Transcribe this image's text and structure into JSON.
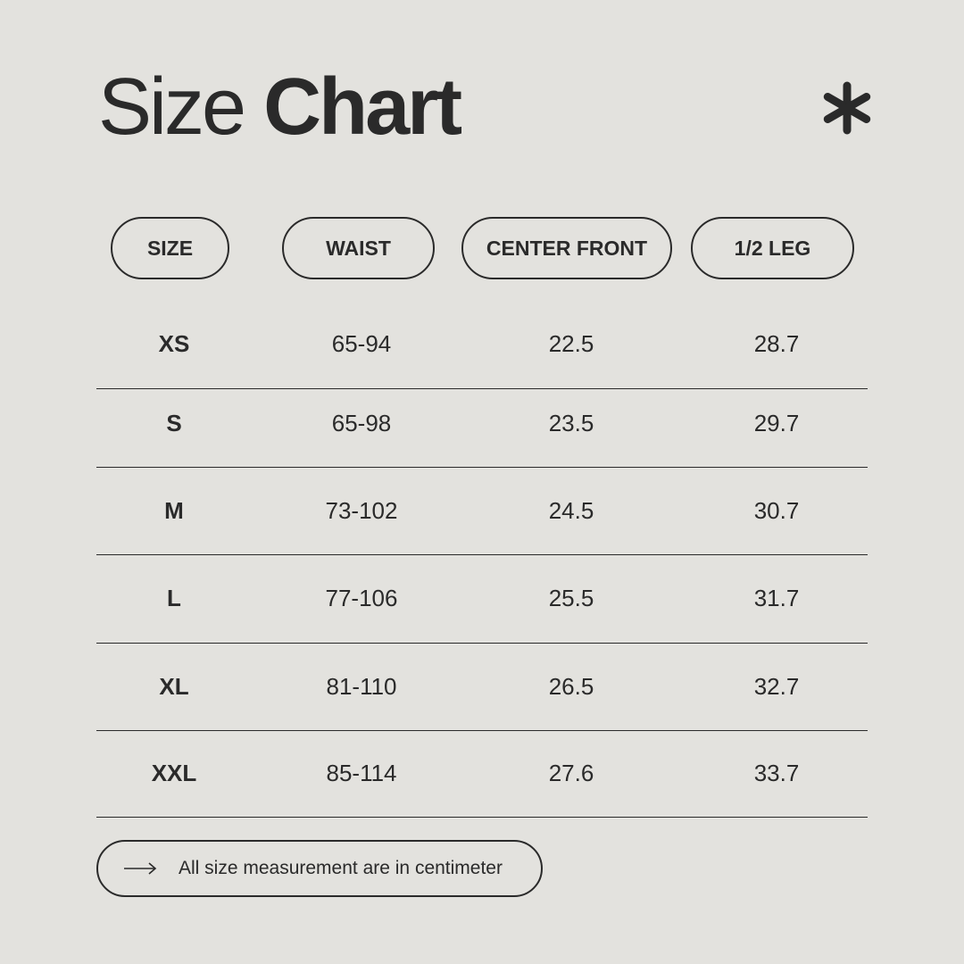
{
  "title": {
    "light": "Size",
    "bold": "Chart"
  },
  "decoration_icon": "asterisk-icon",
  "headers": [
    "SIZE",
    "WAIST",
    "CENTER FRONT",
    "1/2 LEG"
  ],
  "rows": [
    [
      "XS",
      "65-94",
      "22.5",
      "28.7"
    ],
    [
      "S",
      "65-98",
      "23.5",
      "29.7"
    ],
    [
      "M",
      "73-102",
      "24.5",
      "30.7"
    ],
    [
      "L",
      "77-106",
      "25.5",
      "31.7"
    ],
    [
      "XL",
      "81-110",
      "26.5",
      "32.7"
    ],
    [
      "XXL",
      "85-114",
      "27.6",
      "33.7"
    ]
  ],
  "note": {
    "icon": "arrow-right-icon",
    "text": "All size measurement are in centimeter"
  },
  "colors": {
    "background": "#e3e2de",
    "text": "#2a2a2a"
  }
}
